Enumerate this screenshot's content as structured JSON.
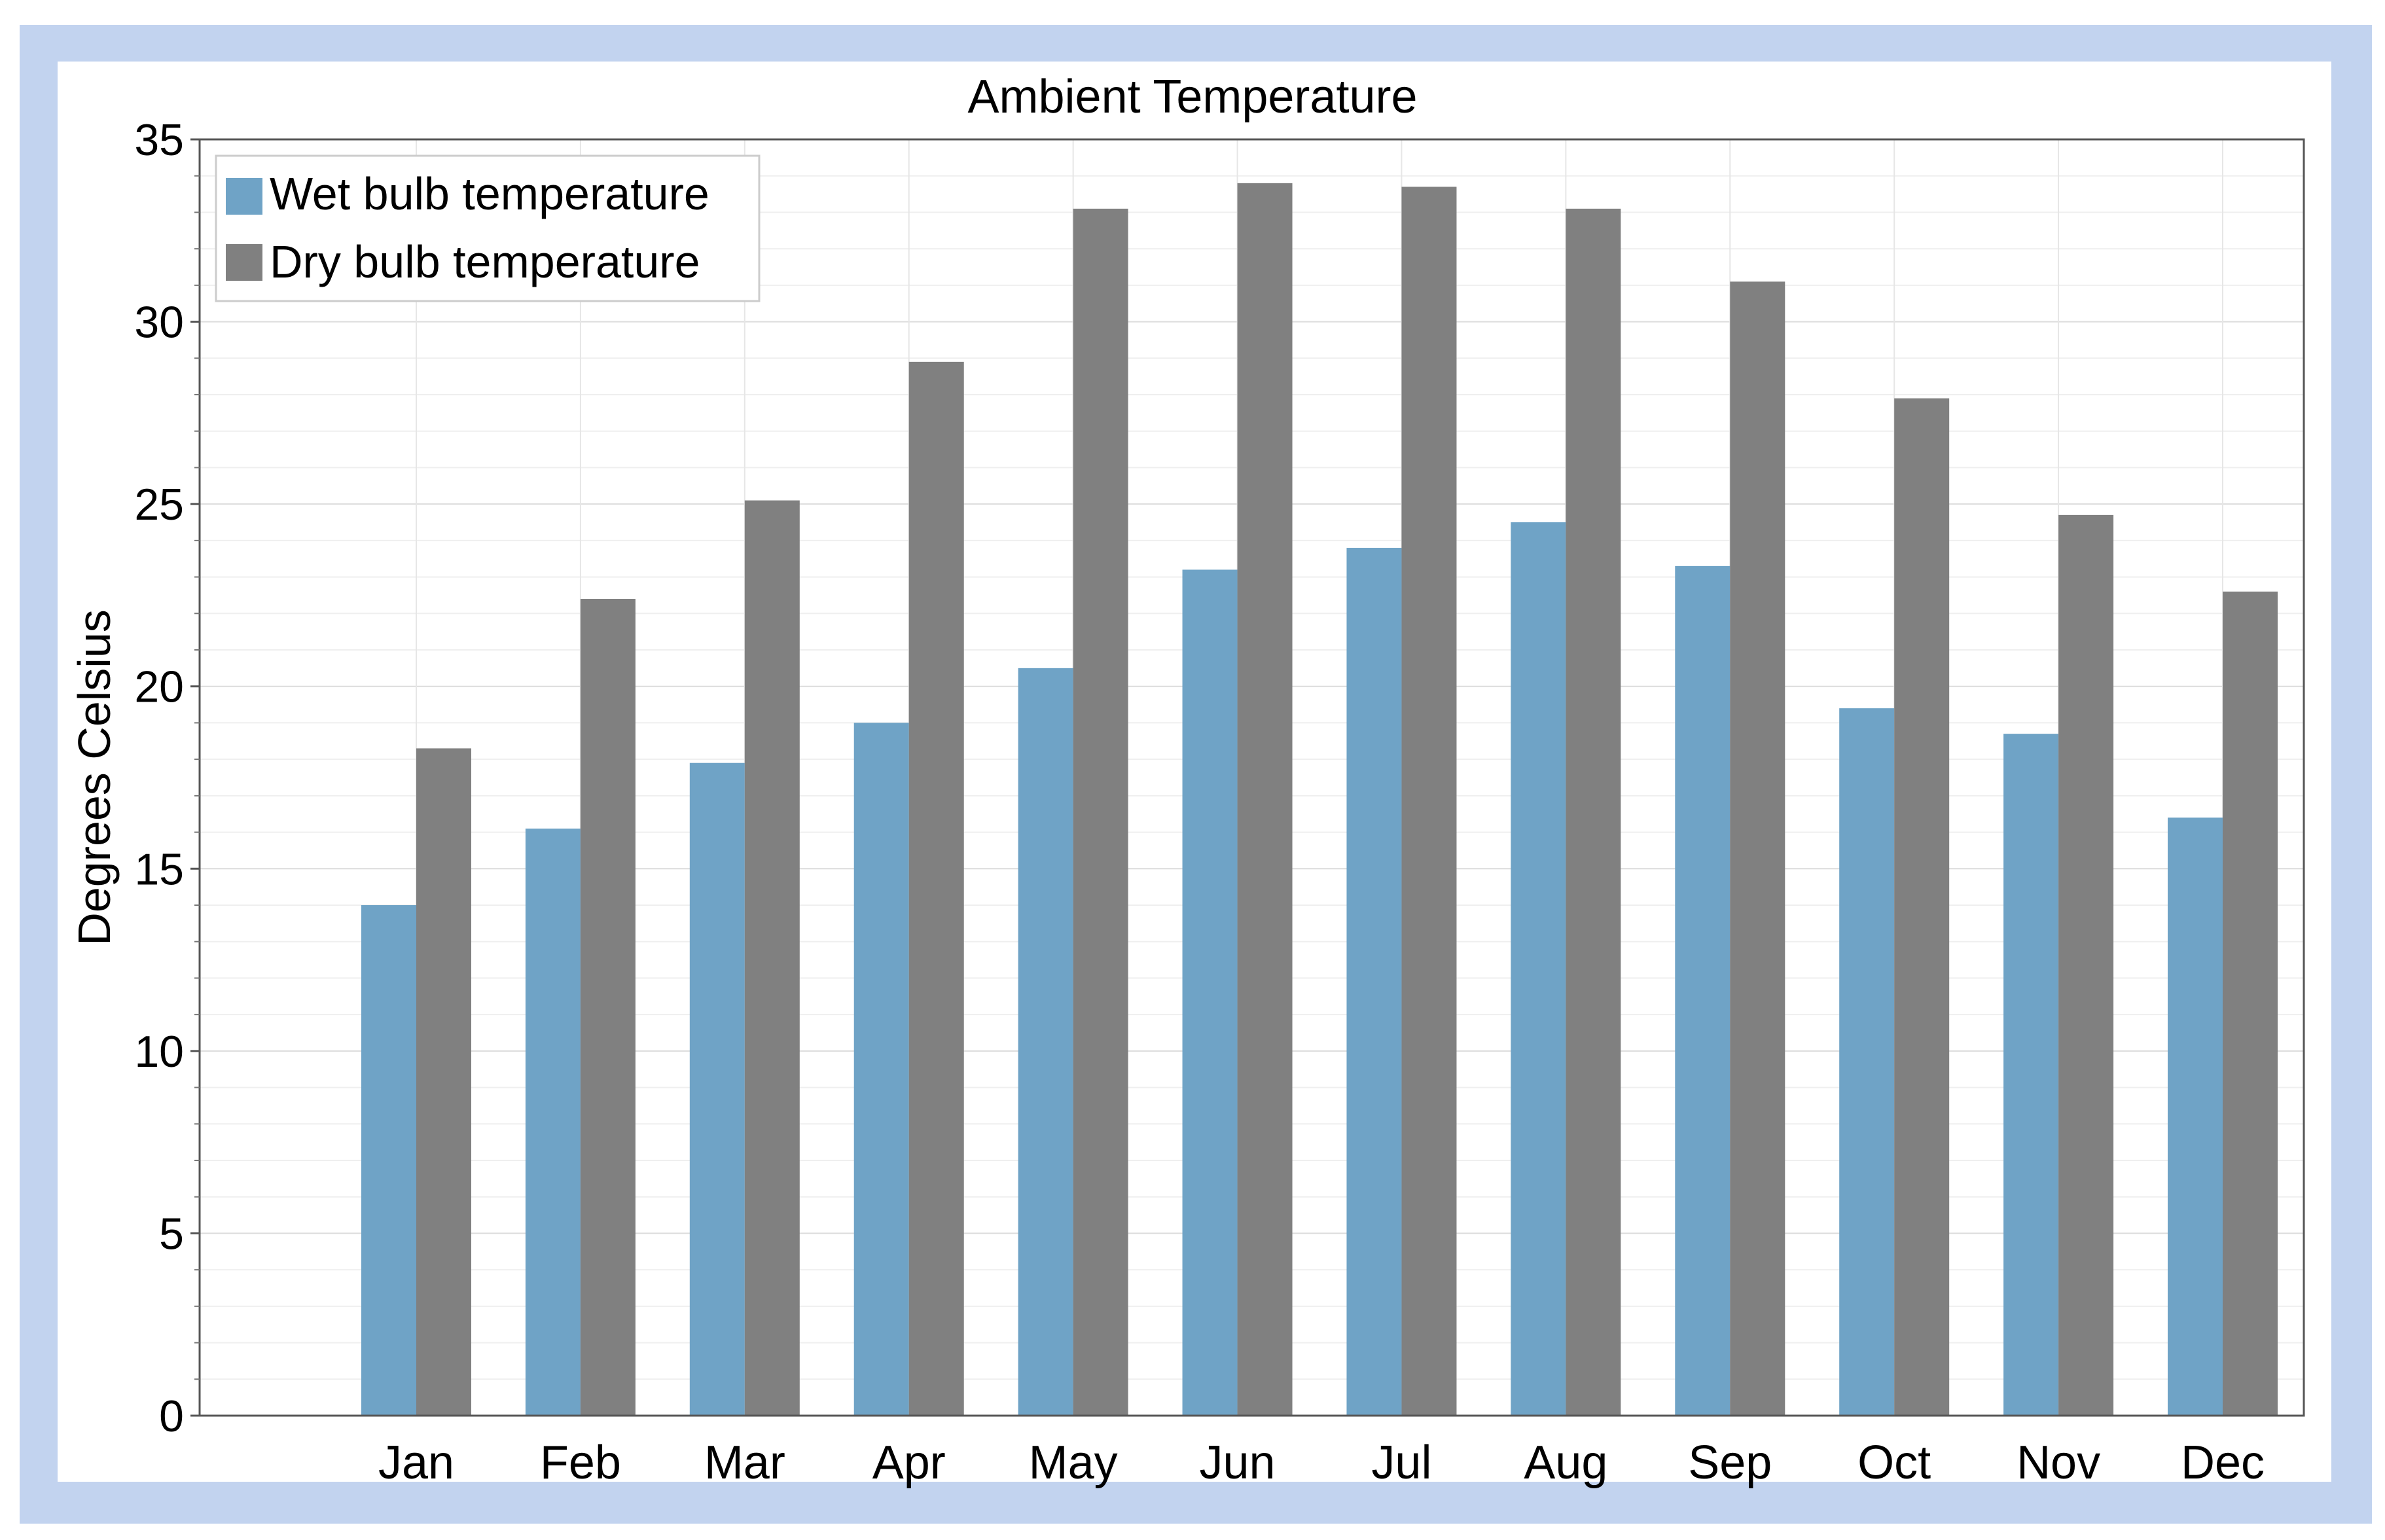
{
  "chart_data": {
    "type": "bar",
    "title": "Ambient Temperature",
    "xlabel": "",
    "ylabel": "Degrees Celsius",
    "ylim": [
      0,
      35
    ],
    "yticks": [
      0,
      5,
      10,
      15,
      20,
      25,
      30,
      35
    ],
    "grid": true,
    "legend_position": "top-left",
    "categories": [
      "Jan",
      "Feb",
      "Mar",
      "Apr",
      "May",
      "Jun",
      "Jul",
      "Aug",
      "Sep",
      "Oct",
      "Nov",
      "Dec"
    ],
    "series": [
      {
        "name": "Wet bulb temperature",
        "color": "#6fa3c6",
        "values": [
          14.0,
          16.1,
          17.9,
          19.0,
          20.5,
          23.2,
          23.8,
          24.5,
          23.3,
          19.4,
          18.7,
          16.4
        ]
      },
      {
        "name": "Dry bulb temperature",
        "color": "#808080",
        "values": [
          18.3,
          22.4,
          25.1,
          28.9,
          33.1,
          33.8,
          33.7,
          33.1,
          31.1,
          27.9,
          24.7,
          22.6
        ]
      }
    ]
  },
  "colors": {
    "frame": "#c2d3ef",
    "grid": "#e3e3e3",
    "axis": "#555555"
  }
}
